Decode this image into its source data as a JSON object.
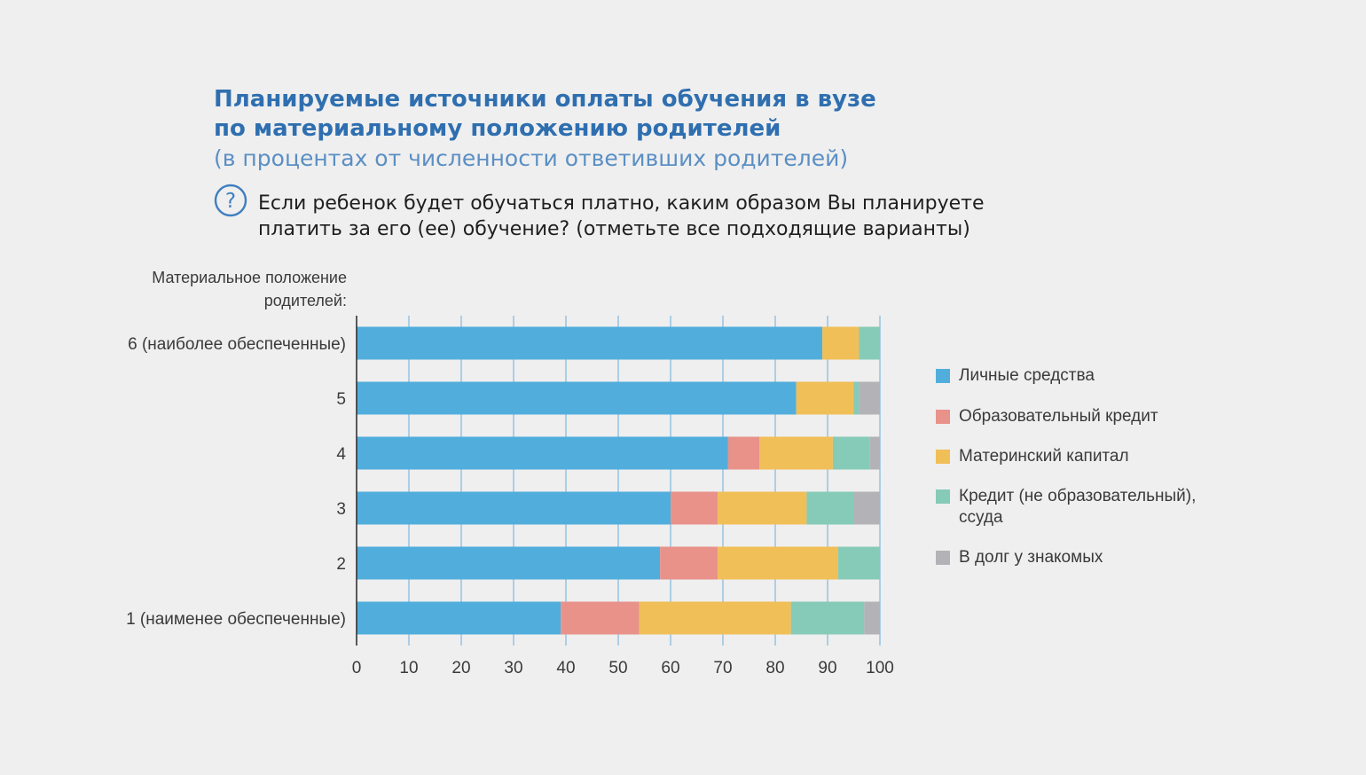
{
  "header": {
    "title_line1": "Планируемые источники оплаты обучения в вузе",
    "title_line2": "по материальному положению родителей",
    "subtitle": "(в процентах от численности ответивших родителей)",
    "question_line1": "Если ребенок будет обучаться платно, каким образом Вы планируете",
    "question_line2": "платить за его (ее) обучение? (отметьте все подходящие варианты)",
    "question_icon": "question-circle-icon"
  },
  "axis": {
    "ylabel_line1": "Материальное положение",
    "ylabel_line2": "родителей:"
  },
  "legend": {
    "items": [
      "Личные средства",
      "Образовательный кредит",
      "Материнский капитал",
      "Кредит (не образовательный),\nссуда",
      "В долг у знакомых"
    ]
  },
  "chart_data": {
    "type": "bar",
    "orientation": "horizontal",
    "stacked": true,
    "categories": [
      "6 (наиболее обеспеченные)",
      "5",
      "4",
      "3",
      "2",
      "1 (наименее обеспеченные)"
    ],
    "series": [
      {
        "name": "Личные средства",
        "color": "#51aedc",
        "values": [
          89,
          84,
          71,
          60,
          58,
          39
        ]
      },
      {
        "name": "Образовательный кредит",
        "color": "#e8928a",
        "values": [
          0,
          0,
          6,
          9,
          11,
          15
        ]
      },
      {
        "name": "Материнский капитал",
        "color": "#f0bf58",
        "values": [
          7,
          11,
          14,
          17,
          23,
          29
        ]
      },
      {
        "name": "Кредит (не образовательный), ссуда",
        "color": "#86cbb7",
        "values": [
          4,
          1,
          7,
          9,
          8,
          14
        ]
      },
      {
        "name": "В долг у знакомых",
        "color": "#b3b3b7",
        "values": [
          0,
          4,
          2,
          5,
          0,
          3
        ]
      }
    ],
    "xticks": [
      0,
      10,
      20,
      30,
      40,
      50,
      60,
      70,
      80,
      90,
      100
    ],
    "xlim": [
      0,
      100
    ],
    "grid": true,
    "legend_position": "right"
  }
}
